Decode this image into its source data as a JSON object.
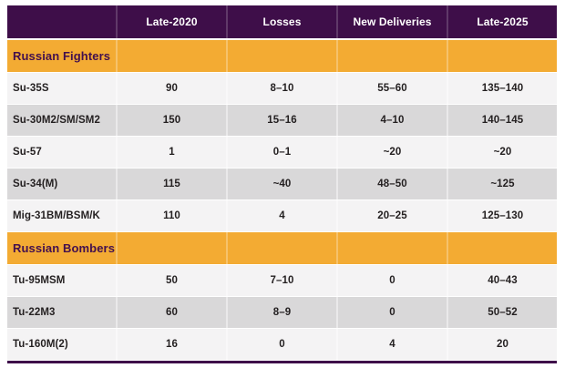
{
  "table": {
    "columns": [
      "",
      "Late-2020",
      "Losses",
      "New Deliveries",
      "Late-2025"
    ],
    "sections": [
      {
        "title": "Russian Fighters",
        "rows": [
          {
            "label": "Su-35S",
            "values": [
              "90",
              "8–10",
              "55–60",
              "135–140"
            ]
          },
          {
            "label": "Su-30M2/SM/SM2",
            "values": [
              "150",
              "15–16",
              "4–10",
              "140–145"
            ]
          },
          {
            "label": "Su-57",
            "values": [
              "1",
              "0–1",
              "~20",
              "~20"
            ]
          },
          {
            "label": "Su-34(M)",
            "values": [
              "115",
              "~40",
              "48–50",
              "~125"
            ]
          },
          {
            "label": "Mig-31BM/BSM/K",
            "values": [
              "110",
              "4",
              "20–25",
              "125–130"
            ]
          }
        ]
      },
      {
        "title": "Russian Bombers",
        "rows": [
          {
            "label": "Tu-95MSM",
            "values": [
              "50",
              "7–10",
              "0",
              "40–43"
            ]
          },
          {
            "label": "Tu-22M3",
            "values": [
              "60",
              "8–9",
              "0",
              "50–52"
            ]
          },
          {
            "label": "Tu-160M(2)",
            "values": [
              "16",
              "0",
              "4",
              "20"
            ]
          }
        ]
      }
    ]
  },
  "colors": {
    "header_bg": "#3E0E49",
    "section_bg": "#F3AB33",
    "row_light": "#F4F3F4",
    "row_dark": "#D9D8D9",
    "header_text": "#FFFFFF",
    "section_text": "#43104E",
    "row_text": "#231F20"
  }
}
